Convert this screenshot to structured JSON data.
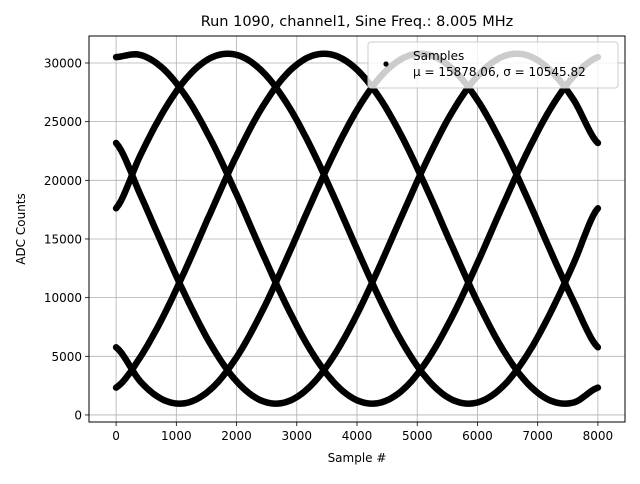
{
  "chart_data": {
    "type": "scatter",
    "title": "Run 1090, channel1, Sine Freq.: 8.005 MHz",
    "xlabel": "Sample #",
    "ylabel": "ADC Counts",
    "xlim": [
      -450,
      8450
    ],
    "ylim": [
      -600,
      32300
    ],
    "xticks": [
      0,
      1000,
      2000,
      3000,
      4000,
      5000,
      6000,
      7000,
      8000
    ],
    "yticks": [
      0,
      5000,
      10000,
      15000,
      20000,
      25000,
      30000
    ],
    "grid": true,
    "marker_color": "#000000",
    "legend": {
      "placement": "top-right",
      "label": "Samples",
      "stats_mu": "μ = 15878.06, ",
      "stats_sigma": "σ = 10545.82"
    },
    "x": [
      0,
      400,
      800,
      1200,
      1600,
      2000,
      2400,
      2800,
      3200,
      3600,
      4000,
      4400,
      4800,
      5200,
      5600,
      6000,
      6400,
      6800,
      7200,
      7600,
      8000
    ],
    "series": [
      {
        "values": [
          17618,
          22110,
          25993,
          28885,
          30503,
          30691,
          29427,
          26838,
          23177,
          18800,
          14138,
          9646,
          5763,
          2871,
          1253,
          1065,
          2329,
          4918,
          8579,
          12956,
          17618
        ]
      },
      {
        "values": [
          30503,
          30691,
          29427,
          26838,
          23177,
          18800,
          14138,
          9646,
          5763,
          2871,
          1253,
          1065,
          2329,
          4918,
          8579,
          12956,
          17618,
          22110,
          25993,
          28885,
          30503
        ]
      },
      {
        "values": [
          23177,
          18800,
          14138,
          9646,
          5763,
          2871,
          1253,
          1065,
          2329,
          4918,
          8579,
          12956,
          17618,
          22110,
          25993,
          28885,
          30503,
          30691,
          29427,
          26838,
          23177
        ]
      },
      {
        "values": [
          5763,
          2871,
          1253,
          1065,
          2329,
          4918,
          8579,
          12956,
          17618,
          22110,
          25993,
          28885,
          30503,
          30691,
          29427,
          26838,
          23177,
          18800,
          14138,
          9646,
          5763
        ]
      },
      {
        "values": [
          2329,
          4918,
          8579,
          12956,
          17618,
          22110,
          25993,
          28885,
          30503,
          30691,
          29427,
          26838,
          23177,
          18800,
          14138,
          9646,
          5763,
          2871,
          1253,
          1065,
          2329
        ]
      }
    ]
  }
}
